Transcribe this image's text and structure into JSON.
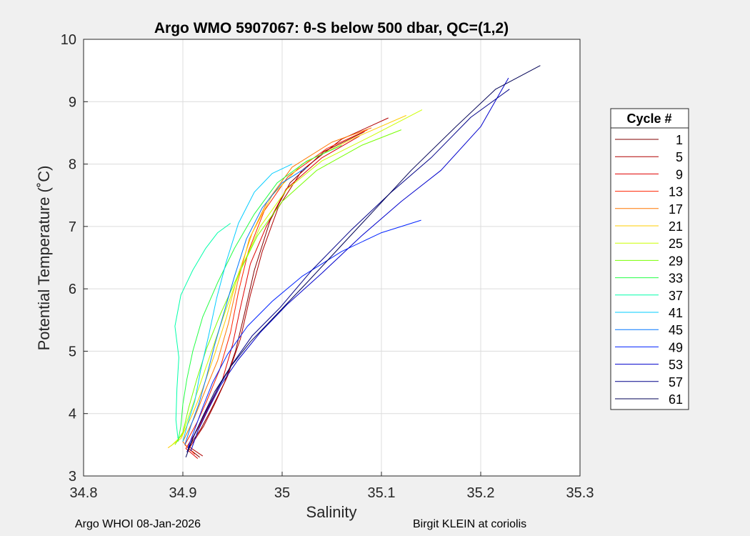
{
  "footer": {
    "left": "Argo WHOI 08-Jan-2026",
    "right": "Birgit KLEIN at coriolis"
  },
  "chart_data": {
    "type": "line",
    "title": "Argo WMO 5907067: θ-S below 500 dbar,  QC=(1,2)",
    "xlabel": "Salinity",
    "ylabel": "Potential Temperature (˚C)",
    "xlim": [
      34.8,
      35.3
    ],
    "ylim": [
      3,
      10
    ],
    "xticks": [
      "34.8",
      "34.9",
      "35",
      "35.1",
      "35.2",
      "35.3"
    ],
    "yticks": [
      "3",
      "4",
      "5",
      "6",
      "7",
      "8",
      "9",
      "10"
    ],
    "grid": true,
    "legend": {
      "title": "Cycle #",
      "placement": "outside-right",
      "entries": [
        "1",
        "5",
        "9",
        "13",
        "17",
        "21",
        "25",
        "29",
        "33",
        "37",
        "41",
        "45",
        "49",
        "53",
        "57",
        "61"
      ]
    },
    "series": [
      {
        "name": "1",
        "color": "#800000",
        "values": [
          [
            34.917,
            3.3
          ],
          [
            34.905,
            3.45
          ],
          [
            34.918,
            3.75
          ],
          [
            34.928,
            4.05
          ],
          [
            34.942,
            4.5
          ],
          [
            34.953,
            5.0
          ],
          [
            34.962,
            5.6
          ],
          [
            34.972,
            6.3
          ],
          [
            34.988,
            7.1
          ],
          [
            35.008,
            7.7
          ],
          [
            35.042,
            8.2
          ],
          [
            35.083,
            8.52
          ]
        ]
      },
      {
        "name": "5",
        "color": "#b00000",
        "values": [
          [
            34.92,
            3.32
          ],
          [
            34.907,
            3.46
          ],
          [
            34.921,
            3.8
          ],
          [
            34.932,
            4.15
          ],
          [
            34.945,
            4.6
          ],
          [
            34.958,
            5.2
          ],
          [
            34.968,
            5.9
          ],
          [
            34.98,
            6.6
          ],
          [
            34.996,
            7.3
          ],
          [
            35.02,
            7.9
          ],
          [
            35.06,
            8.4
          ],
          [
            35.107,
            8.74
          ]
        ]
      },
      {
        "name": "9",
        "color": "#e00000",
        "values": [
          [
            34.915,
            3.28
          ],
          [
            34.903,
            3.44
          ],
          [
            34.916,
            3.78
          ],
          [
            34.926,
            4.1
          ],
          [
            34.94,
            4.55
          ],
          [
            34.95,
            5.1
          ],
          [
            34.958,
            5.7
          ],
          [
            34.968,
            6.4
          ],
          [
            34.984,
            7.0
          ],
          [
            35.004,
            7.6
          ],
          [
            35.04,
            8.1
          ],
          [
            35.078,
            8.45
          ]
        ]
      },
      {
        "name": "13",
        "color": "#ff2200",
        "values": [
          [
            34.912,
            3.35
          ],
          [
            34.902,
            3.5
          ],
          [
            34.914,
            3.85
          ],
          [
            34.924,
            4.2
          ],
          [
            34.937,
            4.7
          ],
          [
            34.948,
            5.3
          ],
          [
            34.956,
            5.95
          ],
          [
            34.966,
            6.6
          ],
          [
            34.982,
            7.25
          ],
          [
            35.006,
            7.8
          ],
          [
            35.045,
            8.25
          ],
          [
            35.086,
            8.55
          ]
        ]
      },
      {
        "name": "17",
        "color": "#ff7700",
        "values": [
          [
            34.908,
            3.4
          ],
          [
            34.9,
            3.55
          ],
          [
            34.912,
            3.95
          ],
          [
            34.922,
            4.35
          ],
          [
            34.935,
            4.85
          ],
          [
            34.946,
            5.45
          ],
          [
            34.955,
            6.1
          ],
          [
            34.967,
            6.8
          ],
          [
            34.985,
            7.4
          ],
          [
            35.01,
            7.95
          ],
          [
            35.05,
            8.35
          ],
          [
            35.09,
            8.58
          ]
        ]
      },
      {
        "name": "21",
        "color": "#ffcc00",
        "values": [
          [
            34.885,
            3.45
          ],
          [
            34.898,
            3.6
          ],
          [
            34.91,
            4.0
          ],
          [
            34.92,
            4.4
          ],
          [
            34.932,
            4.95
          ],
          [
            34.944,
            5.55
          ],
          [
            34.955,
            6.2
          ],
          [
            34.97,
            6.9
          ],
          [
            34.99,
            7.5
          ],
          [
            35.02,
            8.0
          ],
          [
            35.07,
            8.4
          ],
          [
            35.125,
            8.78
          ]
        ]
      },
      {
        "name": "25",
        "color": "#ccff00",
        "values": [
          [
            34.888,
            3.48
          ],
          [
            34.899,
            3.65
          ],
          [
            34.908,
            4.05
          ],
          [
            34.918,
            4.5
          ],
          [
            34.93,
            5.05
          ],
          [
            34.943,
            5.65
          ],
          [
            34.958,
            6.3
          ],
          [
            34.978,
            7.0
          ],
          [
            35.005,
            7.6
          ],
          [
            35.04,
            8.05
          ],
          [
            35.09,
            8.45
          ],
          [
            35.141,
            8.87
          ]
        ]
      },
      {
        "name": "29",
        "color": "#77ff00",
        "values": [
          [
            34.892,
            3.5
          ],
          [
            34.9,
            3.7
          ],
          [
            34.906,
            4.1
          ],
          [
            34.914,
            4.55
          ],
          [
            34.924,
            5.05
          ],
          [
            34.938,
            5.6
          ],
          [
            34.955,
            6.2
          ],
          [
            34.975,
            6.85
          ],
          [
            35.0,
            7.4
          ],
          [
            35.035,
            7.9
          ],
          [
            35.08,
            8.3
          ],
          [
            35.12,
            8.55
          ]
        ]
      },
      {
        "name": "33",
        "color": "#22ff44",
        "values": [
          [
            34.895,
            3.55
          ],
          [
            34.898,
            3.8
          ],
          [
            34.9,
            4.15
          ],
          [
            34.904,
            4.55
          ],
          [
            34.91,
            5.0
          ],
          [
            34.92,
            5.55
          ],
          [
            34.935,
            6.1
          ],
          [
            34.952,
            6.65
          ],
          [
            34.972,
            7.2
          ],
          [
            34.995,
            7.7
          ],
          [
            35.025,
            8.05
          ],
          [
            35.06,
            8.3
          ]
        ]
      },
      {
        "name": "37",
        "color": "#00ffaa",
        "values": [
          [
            34.895,
            3.6
          ],
          [
            34.893,
            3.9
          ],
          [
            34.894,
            4.4
          ],
          [
            34.896,
            4.9
          ],
          [
            34.892,
            5.4
          ],
          [
            34.898,
            5.9
          ],
          [
            34.91,
            6.3
          ],
          [
            34.923,
            6.65
          ],
          [
            34.935,
            6.9
          ],
          [
            34.948,
            7.05
          ]
        ]
      },
      {
        "name": "41",
        "color": "#00ccff",
        "values": [
          [
            34.9,
            3.55
          ],
          [
            34.905,
            3.85
          ],
          [
            34.912,
            4.2
          ],
          [
            34.918,
            4.7
          ],
          [
            34.926,
            5.25
          ],
          [
            34.934,
            5.85
          ],
          [
            34.944,
            6.45
          ],
          [
            34.956,
            7.05
          ],
          [
            34.972,
            7.55
          ],
          [
            34.99,
            7.85
          ],
          [
            35.01,
            8.0
          ]
        ]
      },
      {
        "name": "45",
        "color": "#0077ff",
        "values": [
          [
            34.902,
            3.5
          ],
          [
            34.908,
            3.8
          ],
          [
            34.916,
            4.15
          ],
          [
            34.924,
            4.6
          ],
          [
            34.932,
            5.1
          ],
          [
            34.942,
            5.65
          ],
          [
            34.952,
            6.2
          ],
          [
            34.964,
            6.8
          ],
          [
            34.98,
            7.3
          ],
          [
            35.0,
            7.7
          ],
          [
            35.025,
            7.95
          ]
        ]
      },
      {
        "name": "49",
        "color": "#0022ff",
        "values": [
          [
            34.905,
            3.45
          ],
          [
            34.912,
            3.75
          ],
          [
            34.92,
            4.1
          ],
          [
            34.93,
            4.5
          ],
          [
            34.945,
            4.95
          ],
          [
            34.965,
            5.4
          ],
          [
            34.99,
            5.8
          ],
          [
            35.02,
            6.2
          ],
          [
            35.06,
            6.6
          ],
          [
            35.1,
            6.9
          ],
          [
            35.14,
            7.1
          ]
        ]
      },
      {
        "name": "53",
        "color": "#0000cc",
        "values": [
          [
            34.908,
            3.4
          ],
          [
            34.915,
            3.72
          ],
          [
            34.925,
            4.05
          ],
          [
            34.938,
            4.45
          ],
          [
            34.955,
            4.85
          ],
          [
            34.978,
            5.3
          ],
          [
            35.005,
            5.75
          ],
          [
            35.04,
            6.25
          ],
          [
            35.08,
            6.85
          ],
          [
            35.12,
            7.4
          ],
          [
            35.16,
            7.9
          ],
          [
            35.2,
            8.6
          ],
          [
            35.228,
            9.38
          ]
        ]
      },
      {
        "name": "57",
        "color": "#000088",
        "values": [
          [
            34.904,
            3.38
          ],
          [
            34.912,
            3.68
          ],
          [
            34.922,
            4.0
          ],
          [
            34.935,
            4.4
          ],
          [
            34.95,
            4.8
          ],
          [
            34.97,
            5.25
          ],
          [
            34.998,
            5.7
          ],
          [
            35.03,
            6.3
          ],
          [
            35.07,
            6.95
          ],
          [
            35.11,
            7.55
          ],
          [
            35.15,
            8.1
          ],
          [
            35.19,
            8.75
          ],
          [
            35.229,
            9.2
          ]
        ]
      },
      {
        "name": "61",
        "color": "#000055",
        "values": [
          [
            34.903,
            3.3
          ],
          [
            34.91,
            3.6
          ],
          [
            34.92,
            3.95
          ],
          [
            34.932,
            4.35
          ],
          [
            34.948,
            4.75
          ],
          [
            34.968,
            5.15
          ],
          [
            34.995,
            5.6
          ],
          [
            35.025,
            6.1
          ],
          [
            35.06,
            6.7
          ],
          [
            35.095,
            7.3
          ],
          [
            35.13,
            7.9
          ],
          [
            35.175,
            8.6
          ],
          [
            35.215,
            9.2
          ],
          [
            35.26,
            9.58
          ]
        ]
      }
    ]
  }
}
